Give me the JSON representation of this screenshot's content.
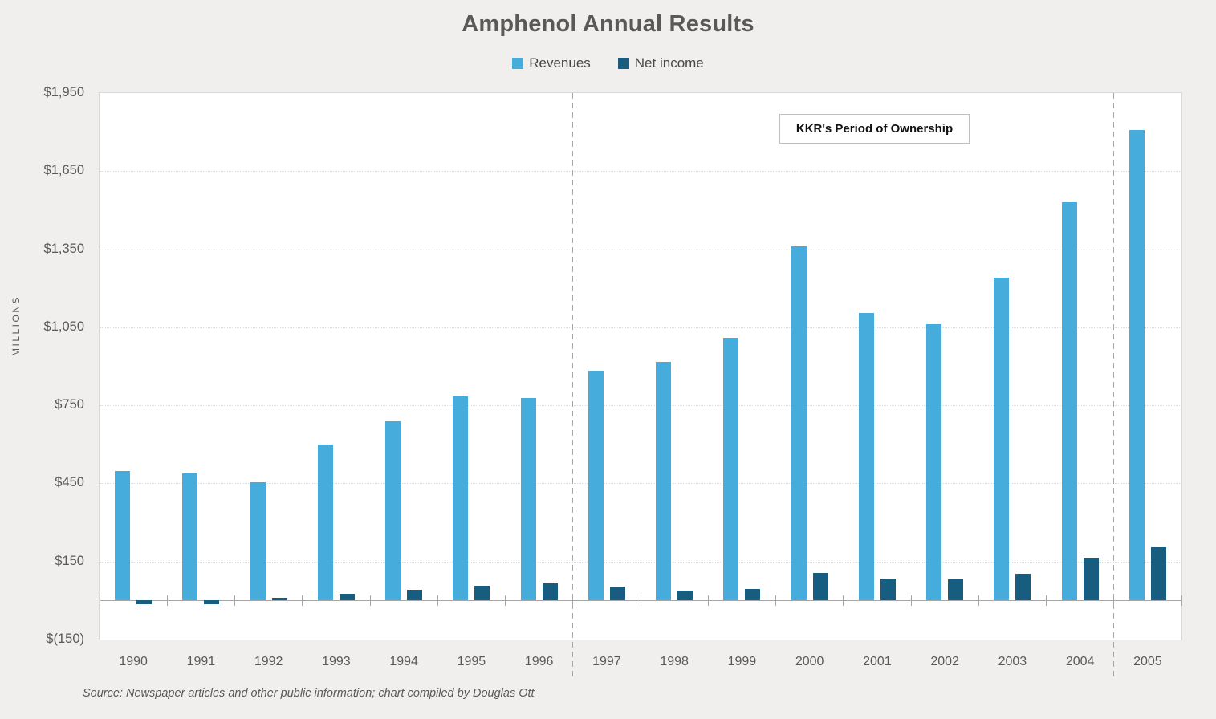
{
  "title": "Amphenol Annual Results",
  "legend": [
    {
      "label": "Revenues",
      "color": "#45acdc"
    },
    {
      "label": "Net income",
      "color": "#175d80"
    }
  ],
  "annotation": {
    "label": "KKR's Period of Ownership"
  },
  "source_note": "Source: Newspaper articles and other public information; chart compiled by Douglas Ott",
  "chart_data": {
    "type": "bar",
    "title": "Amphenol Annual Results",
    "categories": [
      "1990",
      "1991",
      "1992",
      "1993",
      "1994",
      "1995",
      "1996",
      "1997",
      "1998",
      "1999",
      "2000",
      "2001",
      "2002",
      "2003",
      "2004",
      "2005"
    ],
    "series": [
      {
        "name": "Revenues",
        "color": "#45acdc",
        "values": [
          497,
          487,
          455,
          600,
          690,
          785,
          778,
          884,
          918,
          1010,
          1360,
          1104,
          1062,
          1240,
          1530,
          1808
        ]
      },
      {
        "name": "Net income",
        "color": "#175d80",
        "values": [
          -15,
          -15,
          9,
          25,
          40,
          58,
          65,
          52,
          37,
          43,
          107,
          84,
          80,
          104,
          163,
          205
        ]
      }
    ],
    "xlabel": "",
    "ylabel": "MILLIONS",
    "ylim": [
      -150,
      1950
    ],
    "y_ticks": [
      {
        "value": -150,
        "label": "$(150)"
      },
      {
        "value": 150,
        "label": "$150"
      },
      {
        "value": 450,
        "label": "$450"
      },
      {
        "value": 750,
        "label": "$750"
      },
      {
        "value": 1050,
        "label": "$1,050"
      },
      {
        "value": 1350,
        "label": "$1,350"
      },
      {
        "value": 1650,
        "label": "$1,650"
      },
      {
        "value": 1950,
        "label": "$1,950"
      }
    ],
    "grid": "horizontal-dotted",
    "legend_position": "top-center",
    "dashed_lines_after_categories": [
      "1996",
      "2004"
    ],
    "annotation": "KKR's Period of Ownership"
  }
}
